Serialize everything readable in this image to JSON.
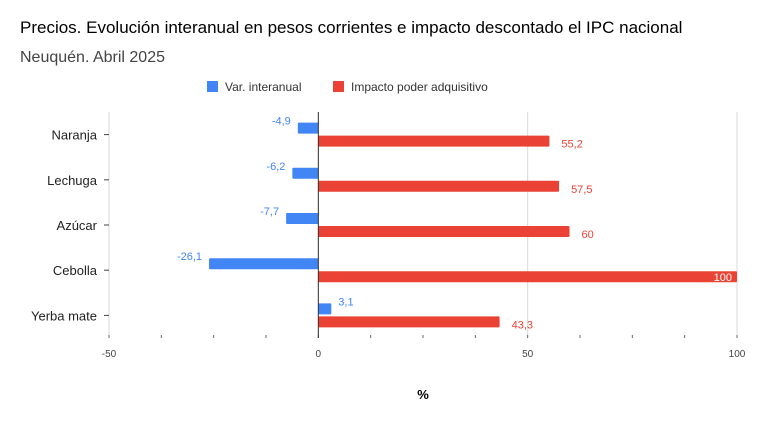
{
  "chart_data": {
    "type": "bar",
    "orientation": "horizontal",
    "title": "Precios. Evolución interanual en pesos corrientes e impacto descontado el IPC nacional",
    "subtitle": "Neuquén. Abril 2025",
    "xlabel": "%",
    "ylabel": "",
    "categories": [
      "Naranja",
      "Lechuga",
      "Azúcar",
      "Cebolla",
      "Yerba mate"
    ],
    "series": [
      {
        "name": "Var. interanual",
        "color": "#4285f4",
        "values": [
          -4.9,
          -6.2,
          -7.7,
          -26.1,
          3.1
        ],
        "labels": [
          "-4,9",
          "-6,2",
          "-7,7",
          "-26,1",
          "3,1"
        ]
      },
      {
        "name": "Impacto poder adquisitivo",
        "color": "#ea4335",
        "values": [
          55.2,
          57.5,
          60,
          100,
          43.3
        ],
        "labels": [
          "55,2",
          "57,5",
          "60",
          "100",
          "43,3"
        ]
      }
    ],
    "xlim": [
      -50,
      100
    ],
    "xticks": [
      -50,
      0,
      50,
      100
    ],
    "xtick_labels": [
      "-50",
      "0",
      "50",
      "100"
    ],
    "grid": true,
    "legend_position": "top"
  }
}
